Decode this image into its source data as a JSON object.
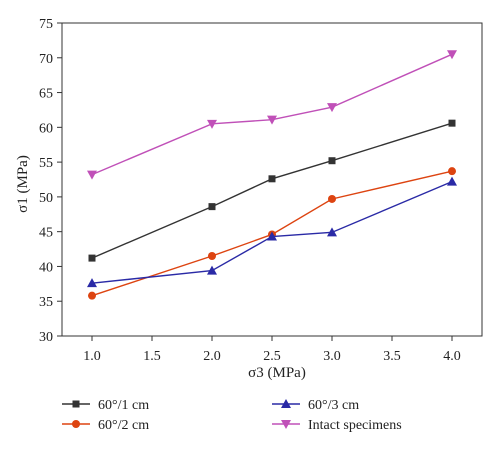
{
  "chart_data": {
    "type": "line",
    "xlabel": "σ3 (MPa)",
    "ylabel": "σ1 (MPa)",
    "xlim": [
      0.75,
      4.25
    ],
    "ylim": [
      30,
      75
    ],
    "xticks": [
      "1.0",
      "1.5",
      "2.0",
      "2.5",
      "3.0",
      "3.5",
      "4.0"
    ],
    "yticks": [
      "30",
      "35",
      "40",
      "45",
      "50",
      "55",
      "60",
      "65",
      "70",
      "75"
    ],
    "grid": false,
    "legend_position": "bottom",
    "series": [
      {
        "name": "60°/1 cm",
        "color": "#333333",
        "marker": "square",
        "x": [
          1.0,
          2.0,
          2.5,
          3.0,
          4.0
        ],
        "values": [
          41.2,
          48.6,
          52.6,
          55.2,
          60.6
        ]
      },
      {
        "name": "60°/2 cm",
        "color": "#dd4411",
        "marker": "circle",
        "x": [
          1.0,
          2.0,
          2.5,
          3.0,
          4.0
        ],
        "values": [
          35.8,
          41.5,
          44.6,
          49.7,
          53.7
        ]
      },
      {
        "name": "60°/3 cm",
        "color": "#2a2aa6",
        "marker": "triangle-up",
        "x": [
          1.0,
          2.0,
          2.5,
          3.0,
          4.0
        ],
        "values": [
          37.6,
          39.4,
          44.3,
          44.9,
          52.2
        ]
      },
      {
        "name": "Intact specimens",
        "color": "#c050b8",
        "marker": "triangle-down",
        "x": [
          1.0,
          2.0,
          2.5,
          3.0,
          4.0
        ],
        "values": [
          53.2,
          60.5,
          61.1,
          62.9,
          70.5
        ]
      }
    ]
  }
}
